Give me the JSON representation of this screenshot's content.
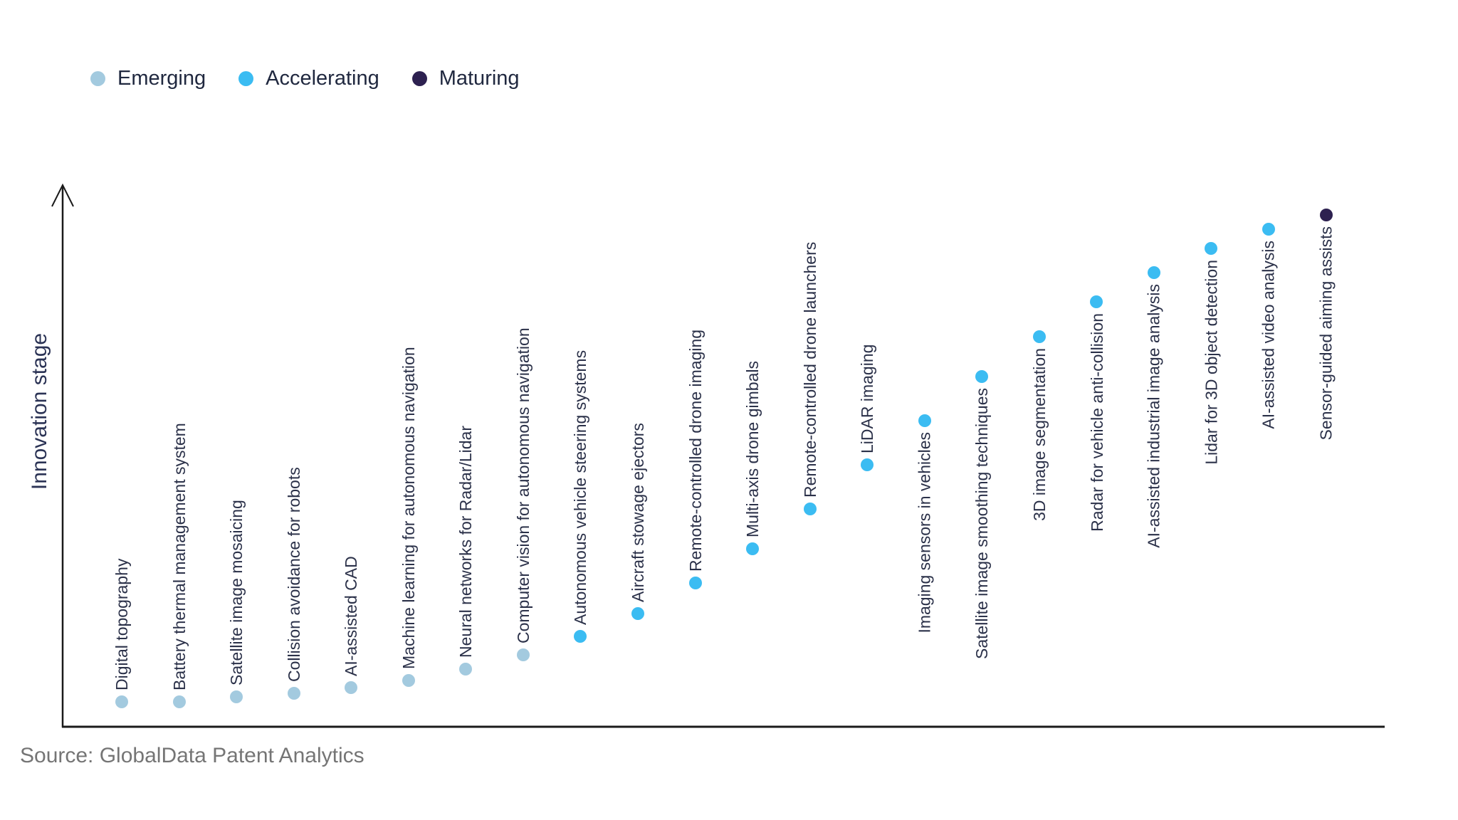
{
  "legend": {
    "items": [
      {
        "label": "Emerging",
        "color": "#a3cadf"
      },
      {
        "label": "Accelerating",
        "color": "#3bbcf2"
      },
      {
        "label": "Maturing",
        "color": "#2d2150"
      }
    ]
  },
  "y_axis_label": "Innovation stage",
  "source": "Source: GlobalData Patent Analytics",
  "chart_data": {
    "type": "scatter",
    "title": "",
    "xlabel": "",
    "ylabel": "Innovation stage",
    "value_basis": "level = estimated S-curve position read from dot height, scale 0-100",
    "ylim": [
      0,
      100
    ],
    "grid": false,
    "legend_position": "top-left",
    "stage_colors": {
      "Emerging": "#a3cadf",
      "Accelerating": "#3bbcf2",
      "Maturing": "#2d2150"
    },
    "points": [
      {
        "label": "Digital topography",
        "stage": "Emerging",
        "level": 4.8
      },
      {
        "label": "Battery thermal management system",
        "stage": "Emerging",
        "level": 4.9
      },
      {
        "label": "Satellite image mosaicing",
        "stage": "Emerging",
        "level": 5.8
      },
      {
        "label": "Collision avoidance for robots",
        "stage": "Emerging",
        "level": 6.5
      },
      {
        "label": "AI-assisted CAD",
        "stage": "Emerging",
        "level": 7.6
      },
      {
        "label": "Machine learning for autonomous navigation",
        "stage": "Emerging",
        "level": 9.0
      },
      {
        "label": "Neural networks for Radar/Lidar",
        "stage": "Emerging",
        "level": 11.3
      },
      {
        "label": "Computer vision for autonomous navigation",
        "stage": "Emerging",
        "level": 14.0
      },
      {
        "label": "Autonomous vehicle steering systems",
        "stage": "Accelerating",
        "level": 17.7
      },
      {
        "label": "Aircraft stowage ejectors",
        "stage": "Accelerating",
        "level": 22.1
      },
      {
        "label": "Remote-controlled drone imaging",
        "stage": "Accelerating",
        "level": 28.1
      },
      {
        "label": "Multi-axis drone gimbals",
        "stage": "Accelerating",
        "level": 34.8
      },
      {
        "label": "Remote-controlled drone launchers",
        "stage": "Accelerating",
        "level": 42.6
      },
      {
        "label": "LiDAR imaging",
        "stage": "Accelerating",
        "level": 51.2
      },
      {
        "label": "Imaging sensors in vehicles",
        "stage": "Accelerating",
        "level": 59.8
      },
      {
        "label": "Satellite image smoothing techniques",
        "stage": "Accelerating",
        "level": 68.4
      },
      {
        "label": "3D image segmentation",
        "stage": "Accelerating",
        "level": 76.2
      },
      {
        "label": "Radar for vehicle anti-collision",
        "stage": "Accelerating",
        "level": 83.0
      },
      {
        "label": "AI-assisted industrial image analysis",
        "stage": "Accelerating",
        "level": 88.7
      },
      {
        "label": "Lidar for 3D object detection",
        "stage": "Accelerating",
        "level": 93.5
      },
      {
        "label": "AI-assisted video analysis",
        "stage": "Accelerating",
        "level": 97.2
      },
      {
        "label": "Sensor-guided aiming assists",
        "stage": "Maturing",
        "level": 100.0
      }
    ]
  }
}
